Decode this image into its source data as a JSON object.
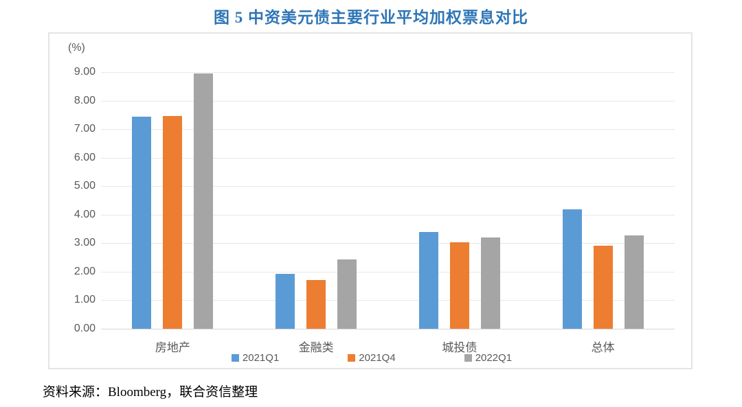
{
  "page": {
    "source": "资料来源：Bloomberg，联合资信整理"
  },
  "chart_data": {
    "type": "bar",
    "title": "图 5 中资美元债主要行业平均加权票息对比",
    "unit_label": "(%)",
    "categories": [
      "房地产",
      "金融类",
      "城投债",
      "总体"
    ],
    "series": [
      {
        "name": "2021Q1",
        "color": "#5B9BD5",
        "values": [
          7.43,
          1.93,
          3.39,
          4.19
        ]
      },
      {
        "name": "2021Q4",
        "color": "#ED7D31",
        "values": [
          7.47,
          1.7,
          3.03,
          2.91
        ]
      },
      {
        "name": "2022Q1",
        "color": "#A5A5A5",
        "values": [
          8.95,
          2.44,
          3.2,
          3.28
        ]
      }
    ],
    "ylim": [
      0,
      9
    ],
    "yticks": [
      "0.00",
      "1.00",
      "2.00",
      "3.00",
      "4.00",
      "5.00",
      "6.00",
      "7.00",
      "8.00",
      "9.00"
    ],
    "grid": true,
    "legend_position": "bottom"
  },
  "colors": {
    "title": "#2E75B6",
    "axis_text": "#595959",
    "gridline": "#E8E8E8",
    "frame_border": "#E4E4E4",
    "background": "#FFFFFF"
  }
}
